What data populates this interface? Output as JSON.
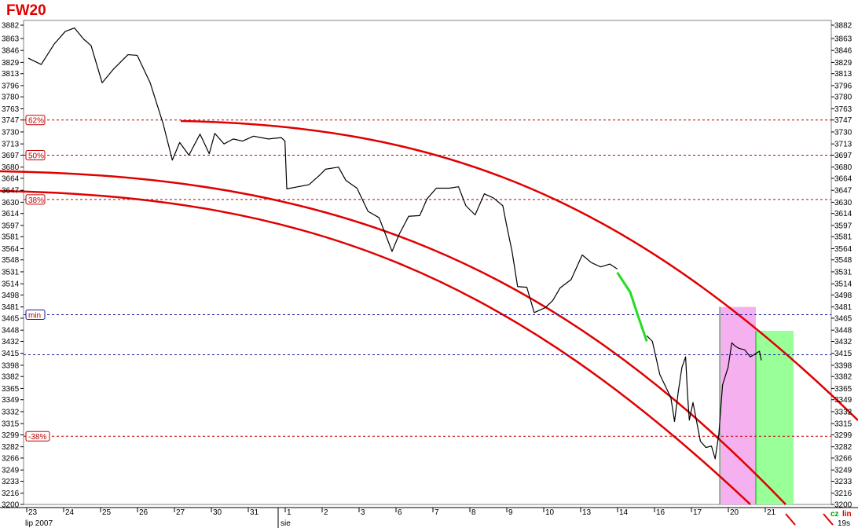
{
  "chart_data": {
    "type": "line",
    "title": "FW20",
    "y_ticks": [
      3882,
      3863,
      3846,
      3829,
      3813,
      3796,
      3780,
      3763,
      3747,
      3730,
      3713,
      3697,
      3680,
      3664,
      3647,
      3630,
      3614,
      3597,
      3581,
      3564,
      3548,
      3531,
      3514,
      3498,
      3481,
      3465,
      3448,
      3432,
      3415,
      3398,
      3382,
      3365,
      3349,
      3332,
      3315,
      3299,
      3282,
      3266,
      3249,
      3233,
      3216,
      3200
    ],
    "ylim": [
      3200,
      3882
    ],
    "x_tick_labels": [
      "23",
      "24",
      "25",
      "26",
      "27",
      "30",
      "31",
      "1",
      "2",
      "3",
      "6",
      "7",
      "8",
      "9",
      "10",
      "13",
      "14",
      "16",
      "17",
      "20",
      "21"
    ],
    "month_labels": [
      "lip 2007",
      "sie"
    ],
    "levels": [
      {
        "label": "62%",
        "value": 3747,
        "color": "#c00000"
      },
      {
        "label": "50%",
        "value": 3697,
        "color": "#c00000"
      },
      {
        "label": "38%",
        "value": 3634,
        "color": "#c00000"
      },
      {
        "label": "min",
        "value": 3470,
        "color": "#1a1a9a"
      },
      {
        "label": "",
        "value": 3413,
        "color": "#1a1a9a"
      },
      {
        "label": "-38%",
        "value": 3297,
        "color": "#c00000"
      }
    ],
    "series": [
      {
        "values": [
          [
            0,
            3835
          ],
          [
            0.35,
            3826
          ],
          [
            0.7,
            3855
          ],
          [
            1.0,
            3873
          ],
          [
            1.25,
            3878
          ],
          [
            1.5,
            3862
          ],
          [
            1.7,
            3853
          ],
          [
            2.0,
            3800
          ],
          [
            2.3,
            3819
          ],
          [
            2.7,
            3840
          ],
          [
            2.95,
            3839
          ],
          [
            3.3,
            3800
          ],
          [
            3.65,
            3742
          ],
          [
            3.9,
            3690
          ],
          [
            4.1,
            3715
          ],
          [
            4.35,
            3697
          ],
          [
            4.65,
            3727
          ],
          [
            4.9,
            3699
          ],
          [
            5.05,
            3728
          ],
          [
            5.3,
            3713
          ],
          [
            5.55,
            3720
          ],
          [
            5.8,
            3717
          ],
          [
            6.1,
            3724
          ],
          [
            6.5,
            3720
          ],
          [
            6.85,
            3722
          ],
          [
            6.95,
            3717
          ],
          [
            7.0,
            3649
          ],
          [
            7.3,
            3652
          ],
          [
            7.6,
            3655
          ],
          [
            7.9,
            3669
          ],
          [
            8.05,
            3677
          ],
          [
            8.4,
            3680
          ],
          [
            8.6,
            3661
          ],
          [
            8.9,
            3650
          ],
          [
            9.2,
            3617
          ],
          [
            9.5,
            3608
          ],
          [
            9.85,
            3560
          ],
          [
            10.05,
            3585
          ],
          [
            10.3,
            3610
          ],
          [
            10.6,
            3611
          ],
          [
            10.8,
            3635
          ],
          [
            11.05,
            3650
          ],
          [
            11.4,
            3650
          ],
          [
            11.65,
            3652
          ],
          [
            11.85,
            3625
          ],
          [
            12.1,
            3612
          ],
          [
            12.35,
            3642
          ],
          [
            12.6,
            3636
          ],
          [
            12.85,
            3625
          ],
          [
            12.95,
            3598
          ],
          [
            13.1,
            3560
          ],
          [
            13.25,
            3510
          ],
          [
            13.5,
            3509
          ],
          [
            13.7,
            3473
          ],
          [
            14.0,
            3480
          ],
          [
            14.2,
            3490
          ],
          [
            14.4,
            3508
          ],
          [
            14.7,
            3520
          ],
          [
            15.0,
            3555
          ],
          [
            15.25,
            3544
          ],
          [
            15.5,
            3538
          ],
          [
            15.75,
            3542
          ],
          [
            15.95,
            3535
          ]
        ]
      },
      {
        "values": [
          [
            15.95,
            3530
          ],
          [
            16.3,
            3502
          ],
          [
            16.5,
            3470
          ],
          [
            16.75,
            3432
          ]
        ]
      },
      {
        "values": [
          [
            16.75,
            3440
          ],
          [
            16.9,
            3432
          ],
          [
            17.1,
            3385
          ],
          [
            17.4,
            3352
          ],
          [
            17.5,
            3318
          ],
          [
            17.6,
            3360
          ],
          [
            17.7,
            3395
          ],
          [
            17.8,
            3410
          ],
          [
            17.85,
            3358
          ],
          [
            17.9,
            3320
          ],
          [
            18.0,
            3345
          ],
          [
            18.2,
            3290
          ],
          [
            18.35,
            3281
          ],
          [
            18.5,
            3283
          ],
          [
            18.6,
            3265
          ],
          [
            18.7,
            3300
          ],
          [
            18.8,
            3370
          ],
          [
            18.95,
            3395
          ],
          [
            19.05,
            3430
          ],
          [
            19.15,
            3425
          ],
          [
            19.25,
            3422
          ],
          [
            19.4,
            3420
          ],
          [
            19.55,
            3410
          ],
          [
            19.65,
            3413
          ],
          [
            19.8,
            3418
          ],
          [
            19.85,
            3405
          ]
        ]
      }
    ]
  },
  "mode": {
    "cz": "cz",
    "lin": "lin",
    "timeframe": "19s"
  }
}
